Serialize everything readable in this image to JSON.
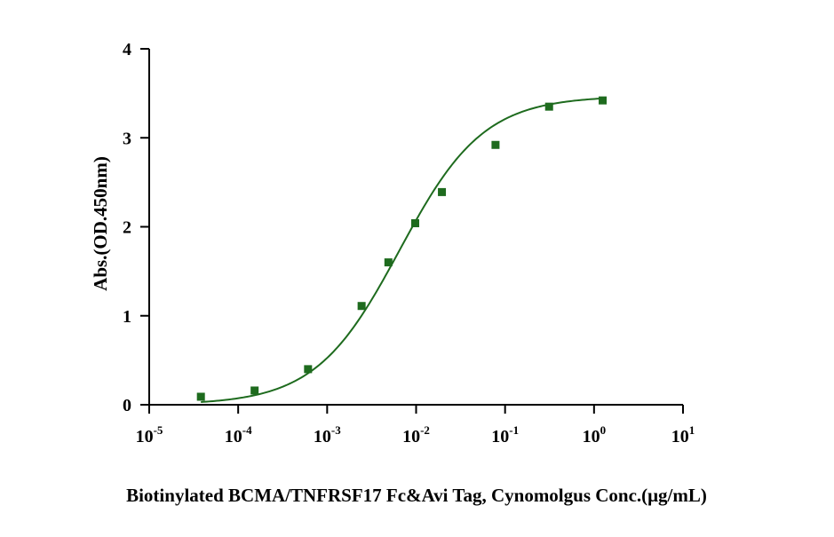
{
  "chart_data": {
    "type": "scatter",
    "title": "",
    "xlabel": "Biotinylated BCMA/TNFRSF17 Fc&Avi Tag, Cynomolgus  Conc.(μg/mL)",
    "ylabel": "Abs.(OD.450nm)",
    "x_scale": "log",
    "xlim": [
      1e-05,
      10
    ],
    "ylim": [
      0,
      4
    ],
    "x_ticks": [
      {
        "base": "10",
        "exp": "-5",
        "value": 1e-05
      },
      {
        "base": "10",
        "exp": "-4",
        "value": 0.0001
      },
      {
        "base": "10",
        "exp": "-3",
        "value": 0.001
      },
      {
        "base": "10",
        "exp": "-2",
        "value": 0.01
      },
      {
        "base": "10",
        "exp": "-1",
        "value": 0.1
      },
      {
        "base": "10",
        "exp": "0",
        "value": 1
      },
      {
        "base": "10",
        "exp": "1",
        "value": 10
      }
    ],
    "y_ticks": [
      "0",
      "1",
      "2",
      "3",
      "4"
    ],
    "grid": false,
    "legend": "none",
    "series": [
      {
        "points": [
          {
            "x": 3.81e-05,
            "y": 0.09
          },
          {
            "x": 0.000153,
            "y": 0.16
          },
          {
            "x": 0.00061,
            "y": 0.4
          },
          {
            "x": 0.00244,
            "y": 1.11
          },
          {
            "x": 0.00488,
            "y": 1.6
          },
          {
            "x": 0.00977,
            "y": 2.04
          },
          {
            "x": 0.0195,
            "y": 2.39
          },
          {
            "x": 0.0781,
            "y": 2.92
          },
          {
            "x": 0.3125,
            "y": 3.35
          },
          {
            "x": 1.25,
            "y": 3.42
          }
        ],
        "fit": {
          "model": "4PL",
          "bottom": 0.0,
          "top": 3.47,
          "ec50": 0.0065,
          "hill": 0.92
        },
        "marker": "square",
        "color": "#1e6b1e"
      }
    ]
  }
}
